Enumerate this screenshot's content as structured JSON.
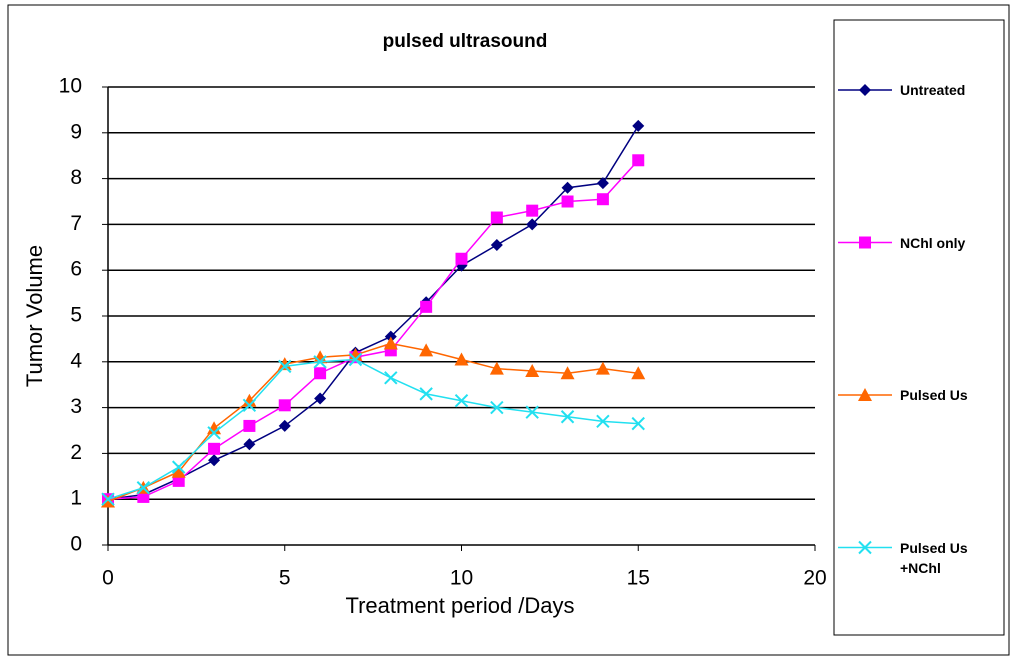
{
  "chart_data": {
    "type": "line",
    "title": "pulsed ultrasound",
    "x_label": "Treatment period /Days",
    "y_label": "Tumor  Volume",
    "x": [
      0,
      1,
      2,
      3,
      4,
      5,
      6,
      7,
      8,
      9,
      10,
      11,
      12,
      13,
      14,
      15
    ],
    "series": [
      {
        "name": "Untreated",
        "color": "#000080",
        "marker": "diamond",
        "values": [
          1,
          1.1,
          1.45,
          1.85,
          2.2,
          2.6,
          3.2,
          4.2,
          4.55,
          5.3,
          6.1,
          6.55,
          7.0,
          7.8,
          7.9,
          9.15
        ]
      },
      {
        "name": "NChl only",
        "color": "#ff00ff",
        "marker": "square",
        "values": [
          1,
          1.05,
          1.4,
          2.1,
          2.6,
          3.05,
          3.75,
          4.1,
          4.25,
          5.2,
          6.25,
          7.15,
          7.3,
          7.5,
          7.55,
          8.4
        ]
      },
      {
        "name": "Pulsed Us",
        "color": "#ff6600",
        "marker": "triangle",
        "values": [
          0.95,
          1.25,
          1.6,
          2.55,
          3.15,
          3.95,
          4.1,
          4.15,
          4.4,
          4.25,
          4.05,
          3.85,
          3.8,
          3.75,
          3.85,
          3.75
        ]
      },
      {
        "name": "Pulsed Us +NChl",
        "color": "#22e0f0",
        "marker": "x",
        "values": [
          1,
          1.25,
          1.7,
          2.45,
          3.05,
          3.9,
          4.0,
          4.05,
          3.65,
          3.3,
          3.15,
          3.0,
          2.9,
          2.8,
          2.7,
          2.65
        ]
      }
    ],
    "xlim": [
      0,
      20
    ],
    "xticks": [
      0,
      5,
      10,
      15,
      20
    ],
    "ylim": [
      0,
      10
    ],
    "yticks": [
      0,
      1,
      2,
      3,
      4,
      5,
      6,
      7,
      8,
      9,
      10
    ],
    "grid": true,
    "legend": "right"
  }
}
